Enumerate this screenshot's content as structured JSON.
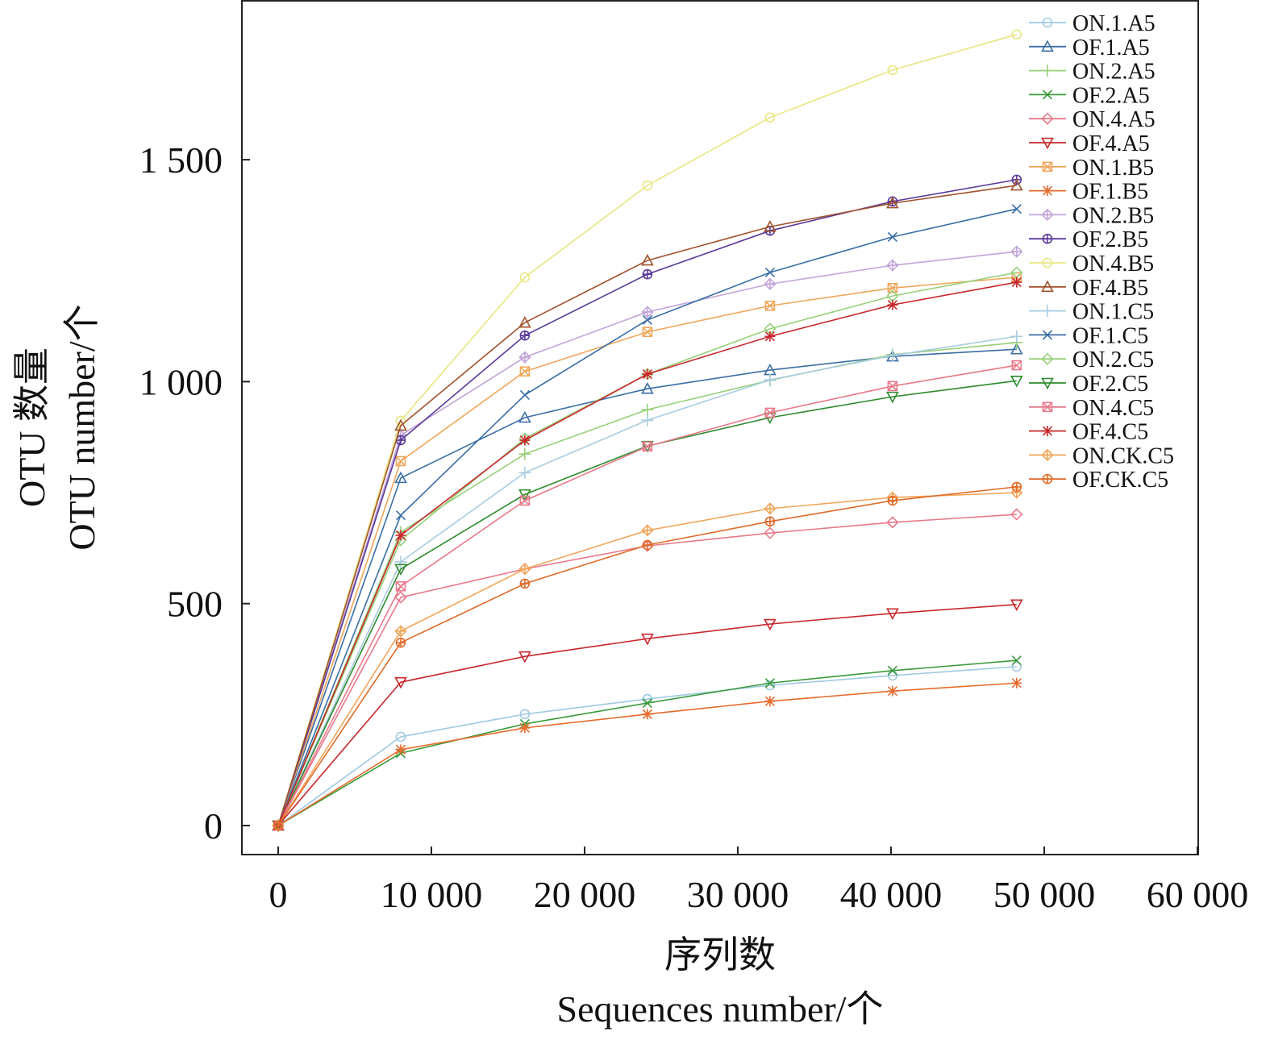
{
  "chart_data": {
    "type": "line",
    "title": "",
    "xlabel": "序列数",
    "xlabel_en": "Sequences number/个",
    "ylabel": "OTU 数量",
    "ylabel_en": "OTU number/个",
    "xlim": [
      -2400,
      60000
    ],
    "ylim": [
      -110,
      1840
    ],
    "xticks": [
      0,
      10000,
      20000,
      30000,
      40000,
      50000,
      60000
    ],
    "xtick_labels": [
      "0",
      "10 000",
      "20 000",
      "30 000",
      "40 000",
      "50 000",
      "60 000"
    ],
    "yticks": [
      0,
      500,
      1000,
      1500
    ],
    "ytick_labels": [
      "0",
      "500",
      "1 000",
      "1 500"
    ],
    "legend_position": "top-right",
    "grid": false,
    "x": [
      0,
      8000,
      16100,
      24100,
      32100,
      40100,
      48200
    ],
    "series": [
      {
        "name": "ON.1.A5",
        "color": "#9ecae1",
        "marker": "circle",
        "values": [
          0,
          200,
          251,
          285,
          316,
          338,
          358
        ]
      },
      {
        "name": "OF.1.A5",
        "color": "#3a6ea5",
        "marker": "triangle",
        "values": [
          0,
          783,
          919,
          984,
          1026,
          1057,
          1073
        ]
      },
      {
        "name": "ON.2.A5",
        "color": "#98d07a",
        "marker": "plus",
        "values": [
          0,
          661,
          837,
          937,
          1003,
          1061,
          1088
        ]
      },
      {
        "name": "OF.2.A5",
        "color": "#3a9a3a",
        "marker": "x",
        "values": [
          0,
          163,
          229,
          276,
          321,
          349,
          372
        ]
      },
      {
        "name": "ON.4.A5",
        "color": "#e8798a",
        "marker": "diamond",
        "values": [
          0,
          514,
          578,
          630,
          659,
          683,
          701
        ]
      },
      {
        "name": "OF.4.A5",
        "color": "#c8282c",
        "marker": "triangle-down",
        "values": [
          0,
          323,
          381,
          421,
          454,
          478,
          498
        ]
      },
      {
        "name": "ON.1.B5",
        "color": "#f0a65a",
        "marker": "square",
        "values": [
          0,
          821,
          1023,
          1112,
          1171,
          1211,
          1235
        ]
      },
      {
        "name": "OF.1.B5",
        "color": "#e8692a",
        "marker": "star",
        "values": [
          0,
          171,
          220,
          251,
          280,
          303,
          321
        ]
      },
      {
        "name": "ON.2.B5",
        "color": "#c2a5d8",
        "marker": "diamond-plus",
        "values": [
          0,
          879,
          1055,
          1157,
          1220,
          1262,
          1293
        ]
      },
      {
        "name": "OF.2.B5",
        "color": "#5a3a9a",
        "marker": "circle-plus",
        "values": [
          0,
          868,
          1104,
          1242,
          1340,
          1406,
          1455
        ]
      },
      {
        "name": "ON.4.B5",
        "color": "#e8e680",
        "marker": "circle",
        "values": [
          0,
          912,
          1235,
          1442,
          1595,
          1702,
          1782
        ]
      },
      {
        "name": "OF.4.B5",
        "color": "#a0522d",
        "marker": "triangle",
        "values": [
          0,
          901,
          1133,
          1273,
          1349,
          1402,
          1442
        ]
      },
      {
        "name": "ON.1.C5",
        "color": "#a8cce0",
        "marker": "plus",
        "values": [
          0,
          594,
          795,
          913,
          1004,
          1059,
          1102
        ]
      },
      {
        "name": "OF.1.C5",
        "color": "#3a6ea5",
        "marker": "x",
        "values": [
          0,
          699,
          970,
          1139,
          1246,
          1326,
          1389
        ]
      },
      {
        "name": "ON.2.C5",
        "color": "#98d07a",
        "marker": "diamond",
        "values": [
          0,
          643,
          872,
          1017,
          1119,
          1193,
          1246
        ]
      },
      {
        "name": "OF.2.C5",
        "color": "#2e8b2e",
        "marker": "triangle-down",
        "values": [
          0,
          578,
          746,
          855,
          919,
          966,
          1002
        ]
      },
      {
        "name": "ON.4.C5",
        "color": "#e8798a",
        "marker": "square",
        "values": [
          0,
          539,
          732,
          854,
          930,
          990,
          1037
        ]
      },
      {
        "name": "OF.4.C5",
        "color": "#c8282c",
        "marker": "star",
        "values": [
          0,
          654,
          868,
          1017,
          1102,
          1173,
          1224
        ]
      },
      {
        "name": "ON.CK.C5",
        "color": "#f0a65a",
        "marker": "diamond-plus",
        "values": [
          0,
          438,
          578,
          665,
          714,
          739,
          750
        ]
      },
      {
        "name": "OF.CK.C5",
        "color": "#e06a28",
        "marker": "circle-plus",
        "values": [
          0,
          412,
          545,
          632,
          685,
          732,
          763
        ]
      }
    ]
  }
}
